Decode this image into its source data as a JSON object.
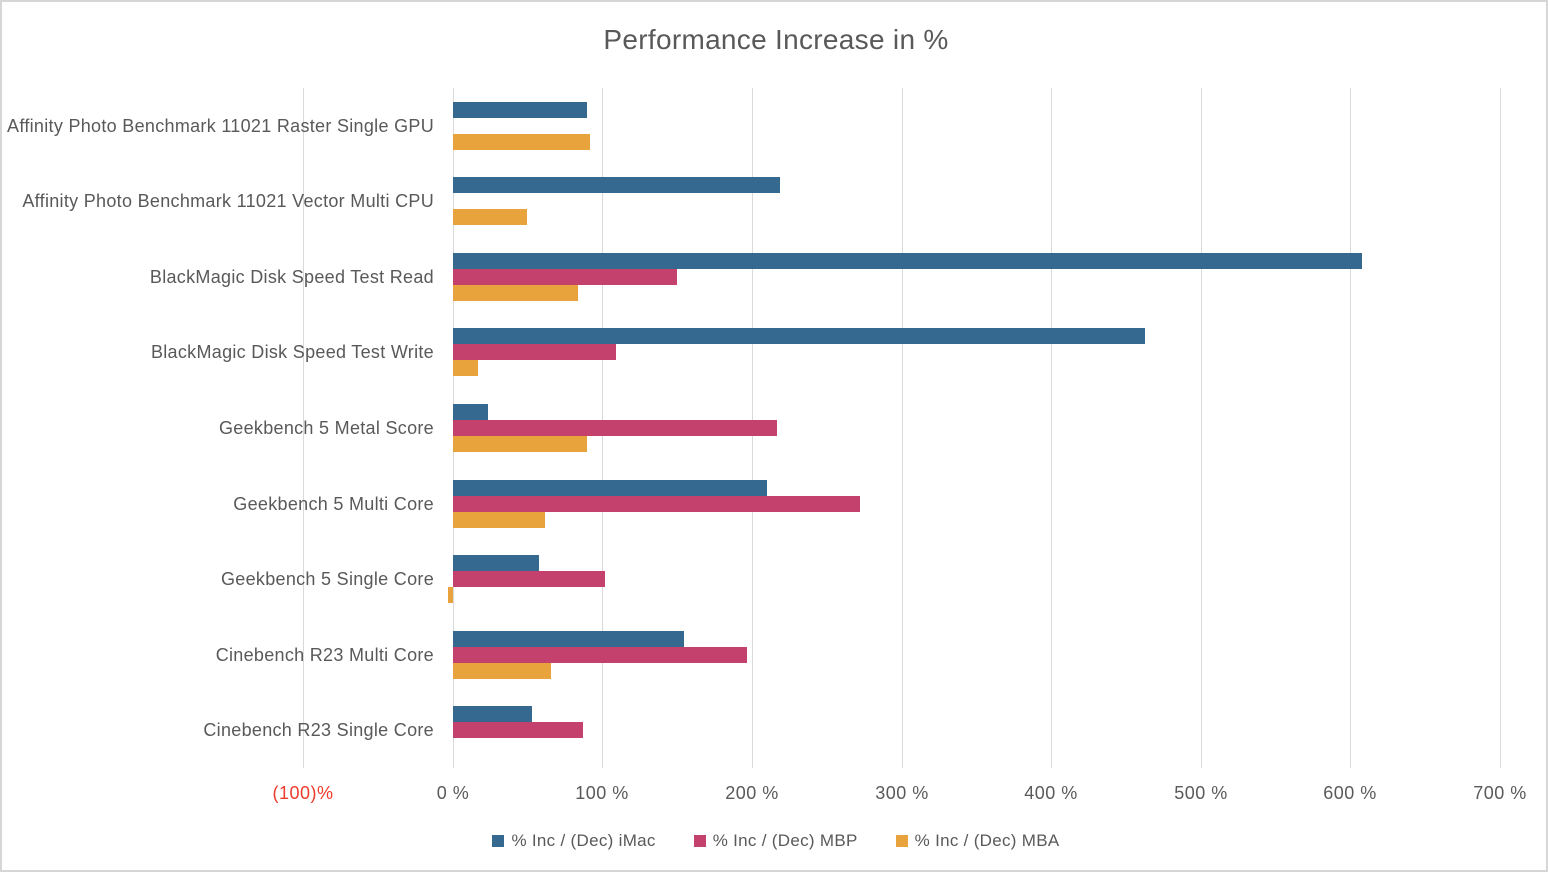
{
  "chart_data": {
    "type": "bar",
    "orientation": "horizontal",
    "title": "Performance Increase in %",
    "categories": [
      "Affinity Photo Benchmark 11021 Raster Single GPU",
      "Affinity Photo Benchmark 11021 Vector Multi CPU",
      "BlackMagic Disk Speed Test Read",
      "BlackMagic Disk Speed Test Write",
      "Geekbench 5 Metal Score",
      "Geekbench 5 Multi Core",
      "Geekbench 5 Single Core",
      "Cinebench R23 Multi Core",
      "Cinebench R23 Single Core"
    ],
    "series": [
      {
        "name": "% Inc / (Dec) iMac",
        "color": "#35698f",
        "values": [
          90,
          219,
          608,
          463,
          24,
          210,
          58,
          155,
          53
        ]
      },
      {
        "name": "% Inc / (Dec) MBP",
        "color": "#c3416c",
        "values": [
          0,
          0,
          150,
          109,
          217,
          272,
          102,
          197,
          87
        ]
      },
      {
        "name": "% Inc / (Dec) MBA",
        "color": "#e8a33d",
        "values": [
          92,
          50,
          84,
          17,
          90,
          62,
          -3,
          66,
          0
        ]
      }
    ],
    "x_axis": {
      "range": [
        -100,
        700
      ],
      "grid": true,
      "ticks": [
        {
          "label": "(100)%",
          "value": -100,
          "color": "#ed3b2b"
        },
        {
          "label": "0 %",
          "value": 0,
          "color": "#595959"
        },
        {
          "label": "100 %",
          "value": 100,
          "color": "#595959"
        },
        {
          "label": "200 %",
          "value": 200,
          "color": "#595959"
        },
        {
          "label": "300 %",
          "value": 300,
          "color": "#595959"
        },
        {
          "label": "400 %",
          "value": 400,
          "color": "#595959"
        },
        {
          "label": "500 %",
          "value": 500,
          "color": "#595959"
        },
        {
          "label": "600 %",
          "value": 600,
          "color": "#595959"
        },
        {
          "label": "700 %",
          "value": 700,
          "color": "#595959"
        }
      ]
    },
    "legend_position": "bottom",
    "grid_color": "#d9d9d9",
    "text_color": "#595959"
  }
}
